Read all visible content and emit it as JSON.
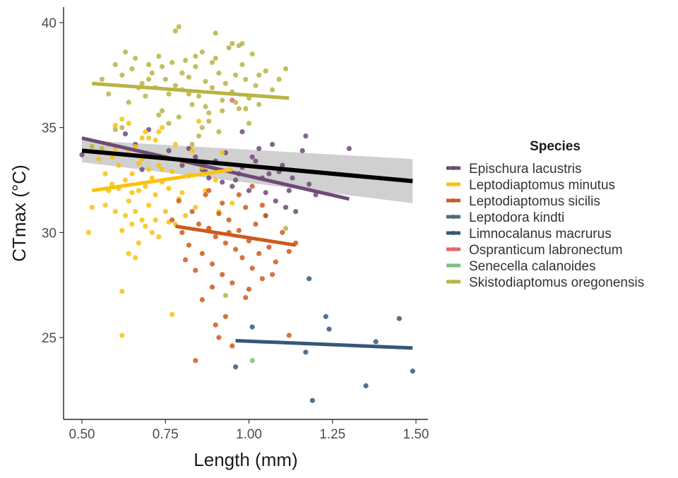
{
  "chart_data": {
    "type": "scatter",
    "title": "",
    "xlabel": "Length (mm)",
    "ylabel": "CTmax (°C)",
    "xlim": [
      0.45,
      1.53
    ],
    "ylim": [
      21.0,
      40.8
    ],
    "x_ticks": [
      0.5,
      0.75,
      1.0,
      1.25,
      1.5
    ],
    "x_tick_labels": [
      "0.50",
      "0.75",
      "1.00",
      "1.25",
      "1.50"
    ],
    "y_ticks": [
      25,
      30,
      35,
      40
    ],
    "y_tick_labels": [
      "25",
      "30",
      "35",
      "40"
    ],
    "grid": false,
    "legend": {
      "title": "Species",
      "placement": "right",
      "entries": [
        {
          "name": "Epischura lacustris",
          "color": "#6e4a76"
        },
        {
          "name": "Leptodiaptomus minutus",
          "color": "#f9c20c"
        },
        {
          "name": "Leptodiaptomus sicilis",
          "color": "#cc5a1e"
        },
        {
          "name": "Leptodora kindti",
          "color": "#4a6e7a"
        },
        {
          "name": "Limnocalanus macrurus",
          "color": "#35587a"
        },
        {
          "name": "Ospranticum labronectum",
          "color": "#e8636a"
        },
        {
          "name": "Senecella calanoides",
          "color": "#7fbf7f"
        },
        {
          "name": "Skistodiaptomus oregonensis",
          "color": "#b9b443"
        }
      ]
    },
    "overall_fit": {
      "color": "#000000",
      "x": [
        0.5,
        1.49
      ],
      "y": [
        33.9,
        32.45
      ],
      "ci_upper": [
        34.4,
        33.5
      ],
      "ci_lower": [
        33.35,
        31.4
      ],
      "ci_color": "#c8c8c8"
    },
    "series": [
      {
        "name": "Epischura lacustris",
        "color": "#6e4a76",
        "fit": {
          "x": [
            0.5,
            1.3
          ],
          "y": [
            34.5,
            31.6
          ]
        },
        "points": [
          [
            0.5,
            33.7
          ],
          [
            0.63,
            34.7
          ],
          [
            0.66,
            34.2
          ],
          [
            0.7,
            34.9
          ],
          [
            0.72,
            33.6
          ],
          [
            0.76,
            33.9
          ],
          [
            0.8,
            33.2
          ],
          [
            0.84,
            33.6
          ],
          [
            0.86,
            33.0
          ],
          [
            0.88,
            32.6
          ],
          [
            0.9,
            33.4
          ],
          [
            0.92,
            32.4
          ],
          [
            0.95,
            32.2
          ],
          [
            0.97,
            32.8
          ],
          [
            0.98,
            33.1
          ],
          [
            1.0,
            32.0
          ],
          [
            1.02,
            33.4
          ],
          [
            1.04,
            32.6
          ],
          [
            1.05,
            31.9
          ],
          [
            1.06,
            32.8
          ],
          [
            1.08,
            31.5
          ],
          [
            1.1,
            33.2
          ],
          [
            1.12,
            32.0
          ],
          [
            1.14,
            31.0
          ],
          [
            1.16,
            33.9
          ],
          [
            1.18,
            32.3
          ],
          [
            1.03,
            34.0
          ],
          [
            0.98,
            34.8
          ],
          [
            1.07,
            34.2
          ],
          [
            0.82,
            34.0
          ],
          [
            0.68,
            33.0
          ],
          [
            0.93,
            33.8
          ],
          [
            1.01,
            33.6
          ],
          [
            0.96,
            32.5
          ],
          [
            1.09,
            32.9
          ],
          [
            1.11,
            31.2
          ],
          [
            0.87,
            32.9
          ],
          [
            1.13,
            32.6
          ],
          [
            1.17,
            34.6
          ],
          [
            1.3,
            34.0
          ],
          [
            1.2,
            31.8
          ],
          [
            1.05,
            30.8
          ]
        ]
      },
      {
        "name": "Leptodiaptomus minutus",
        "color": "#f9c20c",
        "fit": {
          "x": [
            0.53,
            0.95
          ],
          "y": [
            32.0,
            33.0
          ]
        },
        "points": [
          [
            0.52,
            30.0
          ],
          [
            0.55,
            33.5
          ],
          [
            0.57,
            33.8
          ],
          [
            0.58,
            32.0
          ],
          [
            0.59,
            32.3
          ],
          [
            0.6,
            31.0
          ],
          [
            0.6,
            34.0
          ],
          [
            0.61,
            33.2
          ],
          [
            0.62,
            30.1
          ],
          [
            0.62,
            35.4
          ],
          [
            0.63,
            32.5
          ],
          [
            0.64,
            31.5
          ],
          [
            0.64,
            33.9
          ],
          [
            0.65,
            30.4
          ],
          [
            0.65,
            32.8
          ],
          [
            0.66,
            34.1
          ],
          [
            0.66,
            31.0
          ],
          [
            0.67,
            32.0
          ],
          [
            0.67,
            29.5
          ],
          [
            0.68,
            33.5
          ],
          [
            0.68,
            30.6
          ],
          [
            0.69,
            32.2
          ],
          [
            0.69,
            34.8
          ],
          [
            0.7,
            31.3
          ],
          [
            0.7,
            33.0
          ],
          [
            0.71,
            30.0
          ],
          [
            0.71,
            32.6
          ],
          [
            0.72,
            34.4
          ],
          [
            0.72,
            31.8
          ],
          [
            0.73,
            33.2
          ],
          [
            0.73,
            29.8
          ],
          [
            0.74,
            32.4
          ],
          [
            0.74,
            35.0
          ],
          [
            0.75,
            31.0
          ],
          [
            0.75,
            33.6
          ],
          [
            0.76,
            30.5
          ],
          [
            0.77,
            32.9
          ],
          [
            0.78,
            34.2
          ],
          [
            0.79,
            31.6
          ],
          [
            0.8,
            33.4
          ],
          [
            0.81,
            30.8
          ],
          [
            0.82,
            32.7
          ],
          [
            0.84,
            31.2
          ],
          [
            0.86,
            33.1
          ],
          [
            0.88,
            30.2
          ],
          [
            0.9,
            32.5
          ],
          [
            0.92,
            33.8
          ],
          [
            0.95,
            31.4
          ],
          [
            0.62,
            27.2
          ],
          [
            0.62,
            25.1
          ],
          [
            0.77,
            26.1
          ],
          [
            0.66,
            28.8
          ],
          [
            0.64,
            29.0
          ],
          [
            0.57,
            32.8
          ],
          [
            0.59,
            33.6
          ],
          [
            0.61,
            32.1
          ],
          [
            0.63,
            30.8
          ],
          [
            0.65,
            31.9
          ],
          [
            0.67,
            33.3
          ],
          [
            0.69,
            30.3
          ],
          [
            0.7,
            34.5
          ],
          [
            0.72,
            30.6
          ],
          [
            0.74,
            33.0
          ],
          [
            0.76,
            32.1
          ],
          [
            0.78,
            30.4
          ],
          [
            0.8,
            31.9
          ],
          [
            0.83,
            33.9
          ],
          [
            0.87,
            32.0
          ],
          [
            0.91,
            31.0
          ],
          [
            0.57,
            31.3
          ],
          [
            0.53,
            31.2
          ],
          [
            0.58,
            34.2
          ],
          [
            0.6,
            35.1
          ],
          [
            0.64,
            35.2
          ],
          [
            0.68,
            34.5
          ],
          [
            0.73,
            34.8
          ],
          [
            0.85,
            35.3
          ]
        ]
      },
      {
        "name": "Leptodiaptomus sicilis",
        "color": "#cc5a1e",
        "fit": {
          "x": [
            0.78,
            1.14
          ],
          "y": [
            30.3,
            29.4
          ]
        },
        "points": [
          [
            0.77,
            30.6
          ],
          [
            0.79,
            31.5
          ],
          [
            0.8,
            30.0
          ],
          [
            0.82,
            29.4
          ],
          [
            0.83,
            31.0
          ],
          [
            0.84,
            28.2
          ],
          [
            0.85,
            30.4
          ],
          [
            0.86,
            29.0
          ],
          [
            0.87,
            31.8
          ],
          [
            0.88,
            30.2
          ],
          [
            0.89,
            28.5
          ],
          [
            0.9,
            29.8
          ],
          [
            0.91,
            30.9
          ],
          [
            0.92,
            28.0
          ],
          [
            0.93,
            29.5
          ],
          [
            0.94,
            30.6
          ],
          [
            0.95,
            27.6
          ],
          [
            0.96,
            29.2
          ],
          [
            0.97,
            30.1
          ],
          [
            0.98,
            28.8
          ],
          [
            0.99,
            31.2
          ],
          [
            1.0,
            29.6
          ],
          [
            1.01,
            28.3
          ],
          [
            1.02,
            30.4
          ],
          [
            1.03,
            29.0
          ],
          [
            1.04,
            27.8
          ],
          [
            1.05,
            30.8
          ],
          [
            1.06,
            29.3
          ],
          [
            1.08,
            28.6
          ],
          [
            1.1,
            30.0
          ],
          [
            1.12,
            29.1
          ],
          [
            1.14,
            29.5
          ],
          [
            0.84,
            23.9
          ],
          [
            0.9,
            25.6
          ],
          [
            0.93,
            26.0
          ],
          [
            0.95,
            24.6
          ],
          [
            1.0,
            27.3
          ],
          [
            1.12,
            25.1
          ],
          [
            0.88,
            32.0
          ],
          [
            0.92,
            31.4
          ],
          [
            0.86,
            26.8
          ],
          [
            0.89,
            27.4
          ],
          [
            0.97,
            31.8
          ],
          [
            1.01,
            32.2
          ],
          [
            1.04,
            31.3
          ],
          [
            0.81,
            28.7
          ],
          [
            0.91,
            25.0
          ],
          [
            0.94,
            30.0
          ],
          [
            0.99,
            26.9
          ],
          [
            1.07,
            28.0
          ]
        ]
      },
      {
        "name": "Leptodora kindti",
        "color": "#4a6e7a",
        "fit": null,
        "points": []
      },
      {
        "name": "Limnocalanus macrurus",
        "color": "#35587a",
        "fit": {
          "x": [
            0.96,
            1.49
          ],
          "y": [
            24.85,
            24.5
          ]
        },
        "points": [
          [
            0.96,
            23.6
          ],
          [
            1.01,
            25.5
          ],
          [
            1.17,
            24.3
          ],
          [
            1.18,
            27.8
          ],
          [
            1.19,
            22.0
          ],
          [
            1.23,
            26.0
          ],
          [
            1.24,
            25.4
          ],
          [
            1.35,
            22.7
          ],
          [
            1.38,
            24.8
          ],
          [
            1.45,
            25.9
          ],
          [
            1.49,
            23.4
          ]
        ]
      },
      {
        "name": "Ospranticum labronectum",
        "color": "#e8636a",
        "fit": null,
        "points": [
          [
            0.95,
            36.3
          ]
        ]
      },
      {
        "name": "Senecella calanoides",
        "color": "#7fbf7f",
        "fit": null,
        "points": [
          [
            1.01,
            23.9
          ]
        ]
      },
      {
        "name": "Skistodiaptomus oregonensis",
        "color": "#b9b443",
        "fit": {
          "x": [
            0.53,
            1.12
          ],
          "y": [
            37.1,
            36.4
          ]
        },
        "points": [
          [
            0.56,
            37.3
          ],
          [
            0.58,
            36.6
          ],
          [
            0.6,
            38.0
          ],
          [
            0.62,
            37.5
          ],
          [
            0.63,
            38.6
          ],
          [
            0.64,
            36.2
          ],
          [
            0.65,
            37.8
          ],
          [
            0.66,
            38.3
          ],
          [
            0.68,
            37.1
          ],
          [
            0.69,
            36.5
          ],
          [
            0.7,
            38.0
          ],
          [
            0.71,
            37.6
          ],
          [
            0.72,
            36.9
          ],
          [
            0.73,
            38.4
          ],
          [
            0.74,
            35.8
          ],
          [
            0.75,
            37.3
          ],
          [
            0.76,
            36.6
          ],
          [
            0.77,
            38.1
          ],
          [
            0.78,
            37.0
          ],
          [
            0.79,
            35.5
          ],
          [
            0.8,
            36.8
          ],
          [
            0.81,
            38.2
          ],
          [
            0.82,
            37.4
          ],
          [
            0.83,
            36.1
          ],
          [
            0.84,
            37.9
          ],
          [
            0.85,
            36.5
          ],
          [
            0.86,
            38.6
          ],
          [
            0.87,
            37.2
          ],
          [
            0.88,
            35.7
          ],
          [
            0.89,
            36.9
          ],
          [
            0.9,
            38.3
          ],
          [
            0.91,
            37.6
          ],
          [
            0.92,
            36.3
          ],
          [
            0.93,
            37.1
          ],
          [
            0.94,
            38.8
          ],
          [
            0.95,
            36.7
          ],
          [
            0.96,
            37.5
          ],
          [
            0.97,
            35.9
          ],
          [
            0.98,
            38.0
          ],
          [
            0.99,
            37.3
          ],
          [
            1.0,
            36.4
          ],
          [
            1.01,
            38.5
          ],
          [
            1.02,
            37.0
          ],
          [
            1.03,
            36.1
          ],
          [
            1.05,
            37.7
          ],
          [
            1.07,
            36.8
          ],
          [
            1.09,
            37.3
          ],
          [
            1.11,
            37.8
          ],
          [
            0.78,
            39.6
          ],
          [
            0.79,
            39.8
          ],
          [
            0.9,
            39.5
          ],
          [
            0.95,
            39.0
          ],
          [
            0.97,
            38.9
          ],
          [
            0.98,
            39.0
          ],
          [
            0.86,
            35.0
          ],
          [
            0.85,
            34.6
          ],
          [
            0.88,
            35.3
          ],
          [
            0.6,
            34.9
          ],
          [
            0.62,
            35.0
          ],
          [
            0.53,
            34.1
          ],
          [
            0.56,
            34.0
          ],
          [
            0.93,
            27.0
          ],
          [
            1.11,
            30.2
          ],
          [
            0.83,
            34.2
          ],
          [
            0.91,
            34.8
          ],
          [
            1.0,
            35.2
          ],
          [
            0.76,
            35.2
          ],
          [
            0.67,
            36.9
          ],
          [
            0.73,
            35.6
          ],
          [
            0.82,
            36.6
          ],
          [
            0.87,
            36.0
          ],
          [
            0.92,
            35.8
          ],
          [
            0.96,
            36.2
          ],
          [
            0.99,
            35.9
          ],
          [
            1.03,
            37.5
          ],
          [
            0.7,
            37.3
          ],
          [
            0.74,
            37.9
          ],
          [
            0.8,
            37.6
          ],
          [
            0.84,
            38.4
          ],
          [
            0.89,
            38.1
          ]
        ]
      }
    ]
  }
}
